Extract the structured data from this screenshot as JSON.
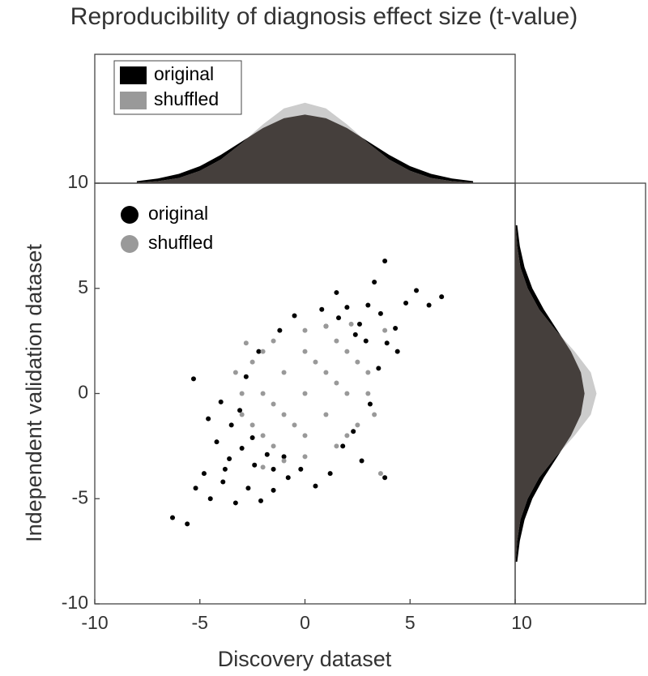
{
  "chart_data": [
    {
      "type": "scatter",
      "title": "Reproducibility of diagnosis effect size (t-value)",
      "x_label": "Discovery dataset",
      "y_label": "Independent validation dataset",
      "xlim": [
        -10,
        10
      ],
      "ylim": [
        -10,
        10
      ],
      "xticks": [
        -10,
        -5,
        0,
        5,
        10
      ],
      "yticks": [
        -10,
        -5,
        0,
        5,
        10
      ],
      "legend": "upper left",
      "series": [
        {
          "name": "original",
          "color": "#000000",
          "x": [
            -6.3,
            -5.6,
            -5.2,
            -4.8,
            -4.5,
            -4.2,
            -3.9,
            -3.6,
            -3.3,
            -3.0,
            -2.7,
            -2.4,
            -2.1,
            -1.8,
            -1.5,
            -3.5,
            -4.0,
            -2.8,
            -2.2,
            -1.2,
            -5.3,
            -4.6,
            -3.1,
            -0.8,
            -0.2,
            0.5,
            1.2,
            1.8,
            2.3,
            2.7,
            3.1,
            3.5,
            3.9,
            4.3,
            4.8,
            5.3,
            5.9,
            6.5,
            2.0,
            2.6,
            3.3,
            3.8,
            4.4,
            1.5,
            0.8,
            -0.5,
            2.9,
            3.6,
            -1.0,
            1.0,
            -3.8,
            -2.5,
            2.4,
            3.0,
            3.8,
            -1.5,
            1.6
          ],
          "y": [
            -5.9,
            -6.2,
            -4.5,
            -3.8,
            -5.0,
            -2.3,
            -4.2,
            -3.1,
            -5.2,
            -2.6,
            -4.5,
            -3.4,
            -5.1,
            -2.9,
            -4.6,
            -1.5,
            -0.4,
            0.8,
            2.0,
            3.0,
            0.7,
            -1.2,
            -0.8,
            -4.0,
            -3.6,
            -4.4,
            -3.8,
            -2.5,
            -1.8,
            -3.2,
            -0.5,
            1.2,
            2.4,
            3.1,
            4.3,
            4.9,
            4.2,
            4.6,
            4.1,
            3.3,
            5.3,
            6.3,
            2.0,
            4.8,
            4.0,
            3.7,
            2.5,
            3.8,
            -3.0,
            3.2,
            -3.6,
            -2.1,
            2.8,
            4.2,
            -4.0,
            -3.6,
            3.6
          ]
        },
        {
          "name": "shuffled",
          "color": "#999999",
          "x": [
            0,
            1,
            -1,
            1,
            -1,
            2,
            -2,
            0,
            0,
            2,
            -2,
            2,
            -2,
            3,
            -3,
            0,
            0,
            2.5,
            -2.5,
            1.5,
            -1.5,
            2.5,
            -2.5,
            1.5,
            -1.5,
            3,
            -3,
            1,
            -1,
            3.3,
            -3.3,
            0.5,
            -0.5,
            1.5,
            -1.5,
            -2.8,
            3.6,
            -2.0,
            2.2,
            3.8
          ],
          "y": [
            0,
            1,
            -1,
            -1,
            1,
            0,
            0,
            2,
            -2,
            2,
            -2,
            -2,
            2,
            0,
            0,
            3,
            -3,
            1.5,
            -1.5,
            2.5,
            -2.5,
            -1.5,
            1.5,
            -2.5,
            2.5,
            1,
            -1,
            3.2,
            -3.2,
            -1,
            1,
            1.5,
            -1.5,
            0.5,
            -0.5,
            2.4,
            -3.8,
            -3.5,
            3.3,
            3.0
          ]
        }
      ]
    },
    {
      "type": "density",
      "orientation": "horizontal",
      "ylim": [
        0,
        0.25
      ],
      "legend": "upper left",
      "overlap_color": "#453f3c",
      "x": [
        -8,
        -7,
        -6,
        -5,
        -4,
        -3,
        -2,
        -1,
        0,
        1,
        2,
        3,
        4,
        5,
        6,
        7,
        8
      ],
      "series": [
        {
          "name": "original",
          "color": "#000000",
          "values": [
            0.004,
            0.009,
            0.018,
            0.033,
            0.055,
            0.081,
            0.107,
            0.126,
            0.133,
            0.126,
            0.107,
            0.081,
            0.055,
            0.033,
            0.018,
            0.009,
            0.004
          ]
        },
        {
          "name": "shuffled",
          "color": "#cccccc",
          "values": [
            0.001,
            0.004,
            0.01,
            0.024,
            0.046,
            0.078,
            0.114,
            0.145,
            0.156,
            0.145,
            0.114,
            0.078,
            0.046,
            0.024,
            0.01,
            0.004,
            0.001
          ]
        }
      ]
    },
    {
      "type": "density",
      "orientation": "vertical",
      "xlim": [
        0,
        0.25
      ],
      "overlap_color": "#453f3c",
      "y": [
        -8,
        -7,
        -6,
        -5,
        -4,
        -3,
        -2,
        -1,
        0,
        1,
        2,
        3,
        4,
        5,
        6,
        7,
        8
      ],
      "series": [
        {
          "name": "original",
          "color": "#000000",
          "values": [
            0.004,
            0.009,
            0.018,
            0.033,
            0.055,
            0.081,
            0.107,
            0.126,
            0.133,
            0.126,
            0.107,
            0.081,
            0.055,
            0.033,
            0.018,
            0.009,
            0.004
          ]
        },
        {
          "name": "shuffled",
          "color": "#cccccc",
          "values": [
            0.001,
            0.004,
            0.01,
            0.024,
            0.046,
            0.078,
            0.114,
            0.145,
            0.156,
            0.145,
            0.114,
            0.078,
            0.046,
            0.024,
            0.01,
            0.004,
            0.001
          ]
        }
      ]
    }
  ]
}
